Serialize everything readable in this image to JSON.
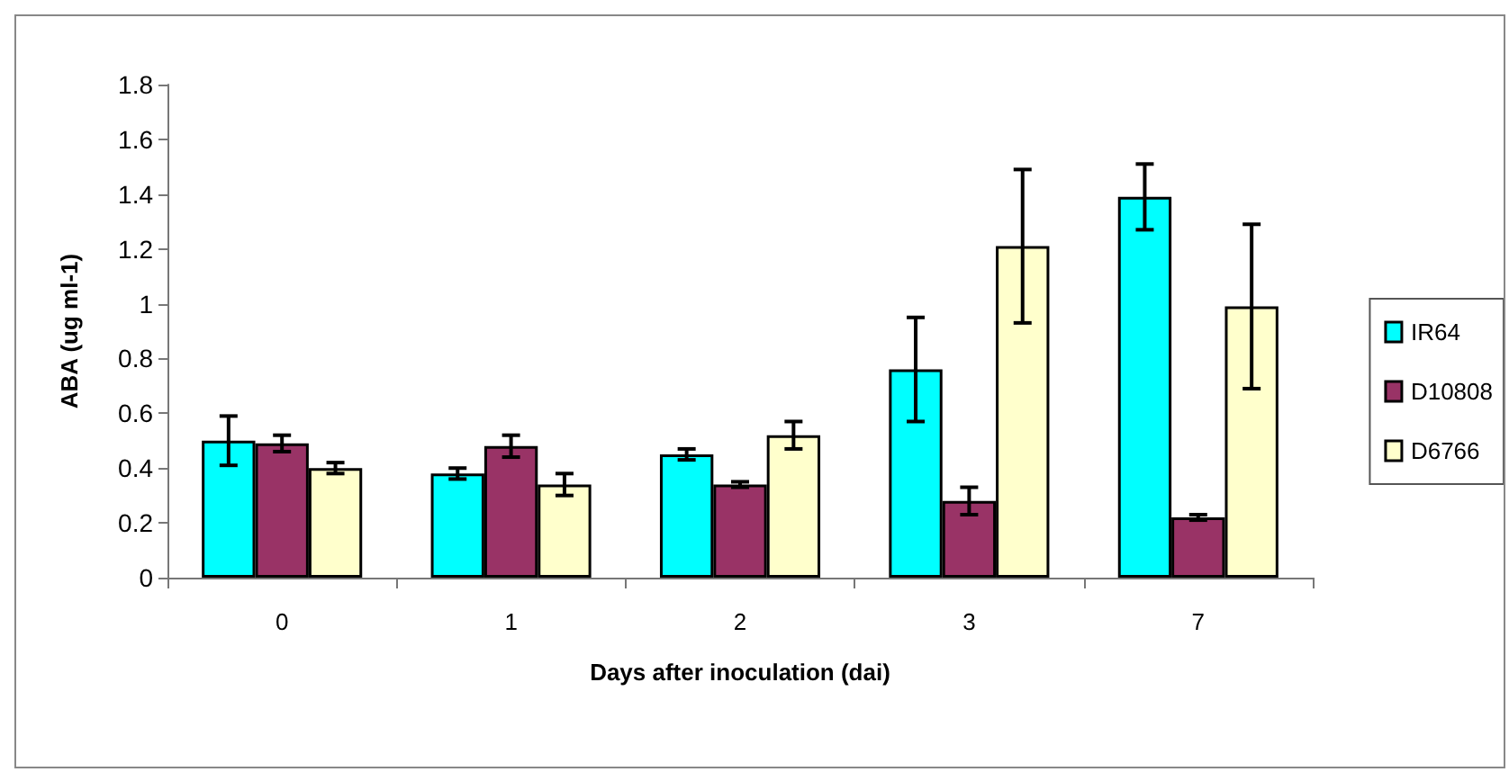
{
  "chart_data": {
    "type": "bar",
    "xlabel": "Days after inoculation (dai)",
    "ylabel": "ABA (ug ml-1)",
    "categories": [
      "0",
      "1",
      "2",
      "3",
      "7"
    ],
    "series": [
      {
        "name": "IR64",
        "color": "#00ffff",
        "values": [
          0.5,
          0.38,
          0.45,
          0.76,
          1.39
        ],
        "errors": [
          0.09,
          0.02,
          0.02,
          0.19,
          0.12
        ]
      },
      {
        "name": "D10808",
        "color": "#993366",
        "values": [
          0.49,
          0.48,
          0.34,
          0.28,
          0.22
        ],
        "errors": [
          0.03,
          0.04,
          0.01,
          0.05,
          0.01
        ]
      },
      {
        "name": "D6766",
        "color": "#ffffcc",
        "values": [
          0.4,
          0.34,
          0.52,
          1.21,
          0.99
        ],
        "errors": [
          0.02,
          0.04,
          0.05,
          0.28,
          0.3
        ]
      }
    ],
    "ylim": [
      0,
      1.8
    ],
    "yticks": [
      0,
      0.2,
      0.4,
      0.6,
      0.8,
      1,
      1.2,
      1.4,
      1.6,
      1.8
    ],
    "grid": false,
    "legend": "right"
  }
}
